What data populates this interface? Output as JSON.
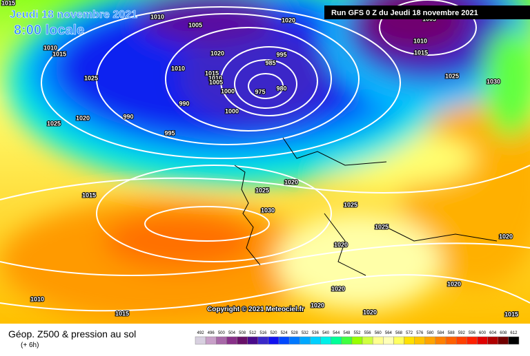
{
  "header": {
    "date": "Jeudi 18 novembre 2021",
    "time": "8:00 locale",
    "run": "Run GFS 0 Z du Jeudi 18 novembre 2021"
  },
  "footer": {
    "title": "Géop. Z500 & pression au sol",
    "lead": "(+ 6h)",
    "copyright": "Copyright © 2021 Meteociel.fr"
  },
  "legend": {
    "levels": [
      "492",
      "496",
      "500",
      "504",
      "508",
      "512",
      "516",
      "520",
      "524",
      "528",
      "532",
      "536",
      "540",
      "544",
      "548",
      "552",
      "556",
      "560",
      "564",
      "568",
      "572",
      "576",
      "580",
      "584",
      "588",
      "592",
      "596",
      "600",
      "604",
      "608",
      "612"
    ],
    "colors": [
      "#d8d0e0",
      "#c8a0c8",
      "#a868a8",
      "#883088",
      "#681068",
      "#4a0a8a",
      "#3a28c8",
      "#1010f0",
      "#0048ff",
      "#0078ff",
      "#00a8ff",
      "#00d0ff",
      "#00f0e8",
      "#00ff98",
      "#40ff40",
      "#98ff00",
      "#d0ff40",
      "#ffff90",
      "#ffffb8",
      "#ffff60",
      "#ffe000",
      "#ffc400",
      "#ffa400",
      "#ff8000",
      "#ff6000",
      "#ff4000",
      "#ff2000",
      "#e00000",
      "#b00000",
      "#700000",
      "#000000"
    ]
  },
  "isobars": [
    "1015",
    "1010",
    "1005",
    "1020",
    "1010",
    "1015",
    "1020",
    "995",
    "985",
    "1010",
    "1015",
    "1010",
    "1005",
    "1025",
    "1000",
    "975",
    "980",
    "990",
    "1000",
    "990",
    "1020",
    "1025",
    "995",
    "1005",
    "1010",
    "1015",
    "1025",
    "1030",
    "1025",
    "1020",
    "1030",
    "1025",
    "1015",
    "1025",
    "1020",
    "1020",
    "1020",
    "1020",
    "1020",
    "1020",
    "1010",
    "1015",
    "1015"
  ]
}
